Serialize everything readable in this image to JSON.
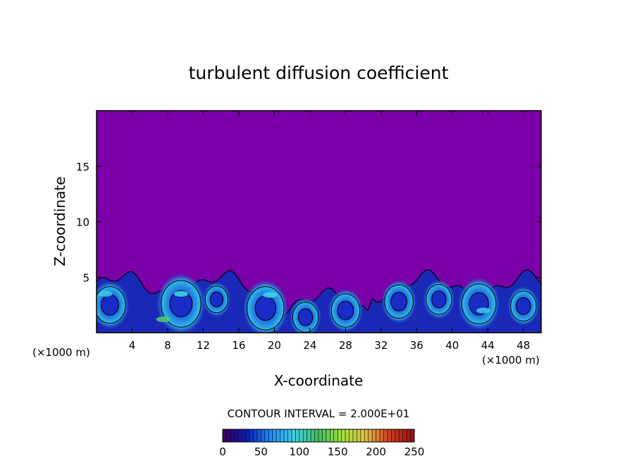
{
  "chart_data": {
    "type": "heatmap",
    "title": "turbulent diffusion coefficient",
    "xlabel": "X-coordinate",
    "ylabel": "Z-coordinate",
    "x_unit_left": "(×1000 m)",
    "x_unit_right": "(×1000 m)",
    "xlim": [
      0,
      50
    ],
    "ylim": [
      0,
      20
    ],
    "x_ticks": [
      "4",
      "8",
      "12",
      "16",
      "20",
      "24",
      "28",
      "32",
      "36",
      "40",
      "44",
      "48"
    ],
    "y_ticks": [
      "5",
      "10",
      "15"
    ],
    "contour_interval_text": "CONTOUR INTERVAL = 2.000E+01",
    "colorbar": {
      "min": 0,
      "max": 250,
      "ticks": [
        "0",
        "50",
        "100",
        "150",
        "200",
        "250"
      ],
      "colors": [
        "#3a006a",
        "#1020b0",
        "#1e90ff",
        "#40d0e0",
        "#40c060",
        "#a0e040",
        "#e0c040",
        "#d04020",
        "#a01010"
      ]
    },
    "background_color": "#7a00a8",
    "boundary_layer_top_km": 5.5,
    "eddies": [
      {
        "x": 1.5,
        "z": 2.5,
        "r": 2.2
      },
      {
        "x": 9.5,
        "z": 2.6,
        "r": 2.8
      },
      {
        "x": 13.5,
        "z": 3.0,
        "r": 1.6
      },
      {
        "x": 19.0,
        "z": 2.2,
        "r": 2.6
      },
      {
        "x": 23.5,
        "z": 1.4,
        "r": 1.8
      },
      {
        "x": 28.0,
        "z": 2.0,
        "r": 2.0
      },
      {
        "x": 34.0,
        "z": 2.8,
        "r": 2.0
      },
      {
        "x": 38.5,
        "z": 3.0,
        "r": 1.8
      },
      {
        "x": 43.0,
        "z": 2.6,
        "r": 2.4
      },
      {
        "x": 48.0,
        "z": 2.4,
        "r": 1.8
      }
    ]
  }
}
